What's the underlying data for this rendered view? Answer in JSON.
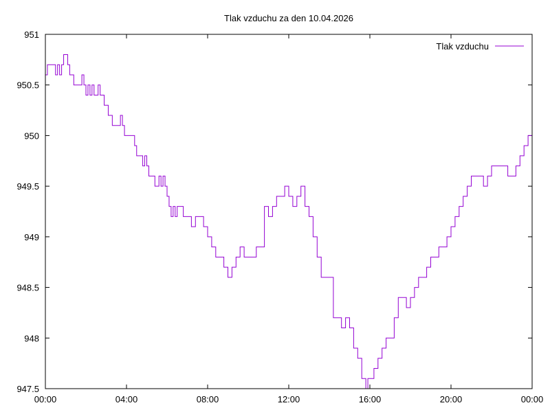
{
  "chart_data": {
    "type": "line",
    "title": "Tlak vzduchu za den 10.04.2026",
    "xlabel": "",
    "ylabel": "",
    "x_tick_labels": [
      "00:00",
      "04:00",
      "08:00",
      "12:00",
      "16:00",
      "20:00",
      "00:00"
    ],
    "y_tick_labels": [
      "947.5",
      "948",
      "948.5",
      "949",
      "949.5",
      "950",
      "950.5",
      "951"
    ],
    "xlim_hours": [
      0,
      24
    ],
    "ylim": [
      947.5,
      951
    ],
    "grid": false,
    "legend_position": "top-right",
    "series": [
      {
        "name": "Tlak vzduchu",
        "color": "#9400d3",
        "x_hours": [
          0.0,
          0.1,
          0.3,
          0.5,
          0.6,
          0.7,
          0.8,
          0.9,
          1.0,
          1.1,
          1.2,
          1.3,
          1.4,
          1.5,
          1.7,
          1.8,
          1.9,
          2.0,
          2.1,
          2.2,
          2.3,
          2.4,
          2.5,
          2.6,
          2.7,
          2.8,
          2.9,
          3.0,
          3.1,
          3.2,
          3.3,
          3.4,
          3.5,
          3.7,
          3.8,
          3.9,
          4.0,
          4.2,
          4.4,
          4.5,
          4.6,
          4.7,
          4.8,
          4.9,
          5.0,
          5.1,
          5.2,
          5.3,
          5.4,
          5.5,
          5.6,
          5.7,
          5.8,
          5.9,
          6.0,
          6.1,
          6.2,
          6.3,
          6.4,
          6.5,
          6.6,
          6.8,
          7.0,
          7.2,
          7.4,
          7.6,
          7.8,
          8.0,
          8.2,
          8.4,
          8.6,
          8.8,
          9.0,
          9.2,
          9.4,
          9.6,
          9.8,
          10.0,
          10.2,
          10.4,
          10.6,
          10.8,
          11.0,
          11.2,
          11.4,
          11.6,
          11.8,
          12.0,
          12.2,
          12.4,
          12.6,
          12.8,
          13.0,
          13.2,
          13.4,
          13.6,
          13.8,
          14.0,
          14.2,
          14.4,
          14.6,
          14.8,
          15.0,
          15.2,
          15.4,
          15.6,
          15.8,
          15.9,
          16.0,
          16.2,
          16.4,
          16.6,
          16.8,
          17.0,
          17.2,
          17.4,
          17.6,
          17.8,
          18.0,
          18.2,
          18.4,
          18.6,
          18.8,
          19.0,
          19.2,
          19.4,
          19.6,
          19.8,
          20.0,
          20.2,
          20.4,
          20.6,
          20.8,
          21.0,
          21.2,
          21.4,
          21.6,
          21.8,
          22.0,
          22.2,
          22.4,
          22.6,
          22.8,
          23.0,
          23.2,
          23.4,
          23.6,
          23.8,
          24.0
        ],
        "values": [
          950.6,
          950.7,
          950.7,
          950.6,
          950.7,
          950.6,
          950.7,
          950.8,
          950.8,
          950.7,
          950.6,
          950.6,
          950.5,
          950.5,
          950.5,
          950.6,
          950.5,
          950.4,
          950.5,
          950.4,
          950.5,
          950.4,
          950.4,
          950.5,
          950.4,
          950.4,
          950.3,
          950.3,
          950.2,
          950.2,
          950.1,
          950.1,
          950.1,
          950.2,
          950.1,
          950.0,
          950.0,
          950.0,
          949.9,
          949.8,
          949.8,
          949.8,
          949.7,
          949.8,
          949.7,
          949.6,
          949.6,
          949.6,
          949.5,
          949.5,
          949.6,
          949.5,
          949.6,
          949.5,
          949.4,
          949.3,
          949.2,
          949.3,
          949.2,
          949.3,
          949.3,
          949.2,
          949.2,
          949.1,
          949.2,
          949.2,
          949.1,
          949.0,
          948.9,
          948.8,
          948.8,
          948.7,
          948.6,
          948.7,
          948.8,
          948.9,
          948.8,
          948.8,
          948.8,
          948.9,
          948.9,
          949.3,
          949.2,
          949.3,
          949.4,
          949.4,
          949.5,
          949.4,
          949.3,
          949.4,
          949.5,
          949.3,
          949.2,
          949.0,
          948.8,
          948.6,
          948.6,
          948.6,
          948.2,
          948.2,
          948.1,
          948.2,
          948.1,
          947.9,
          947.8,
          947.6,
          947.5,
          947.6,
          947.6,
          947.7,
          947.8,
          947.9,
          948.0,
          948.0,
          948.2,
          948.4,
          948.4,
          948.3,
          948.4,
          948.5,
          948.6,
          948.6,
          948.7,
          948.8,
          948.8,
          948.9,
          948.9,
          949.0,
          949.1,
          949.2,
          949.3,
          949.4,
          949.5,
          949.6,
          949.6,
          949.6,
          949.5,
          949.6,
          949.7,
          949.7,
          949.7,
          949.7,
          949.6,
          949.6,
          949.7,
          949.8,
          949.9,
          950.0,
          950.0
        ]
      }
    ]
  }
}
